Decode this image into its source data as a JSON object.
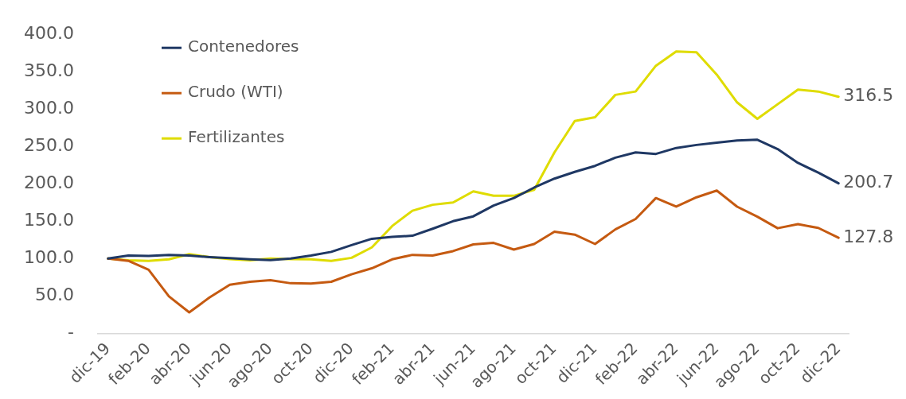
{
  "chart_data": {
    "type": "line",
    "categories": [
      "dic-19",
      null,
      "feb-20",
      null,
      "abr-20",
      null,
      "jun-20",
      null,
      "ago-20",
      null,
      "oct-20",
      null,
      "dic-20",
      null,
      "feb-21",
      null,
      "abr-21",
      null,
      "jun-21",
      null,
      "ago-21",
      null,
      "oct-21",
      null,
      "dic-21",
      null,
      "feb-22",
      null,
      "abr-22",
      null,
      "jun-22",
      null,
      "ago-22",
      null,
      "oct-22",
      null,
      "dic-22"
    ],
    "series": [
      {
        "name": "Contenedores",
        "color": "#1f3864",
        "values": [
          100,
          104,
          103.5,
          105,
          104,
          102,
          100.6,
          99,
          98,
          100,
          104,
          109,
          118,
          126.5,
          129,
          130.6,
          140,
          150,
          156.5,
          171,
          181,
          195,
          207,
          216,
          224,
          235,
          242,
          240,
          248,
          252,
          255,
          258,
          259,
          246.5,
          228,
          215,
          200.7
        ],
        "value_labels": [
          null,
          null,
          null,
          null,
          null,
          null,
          null,
          null,
          null,
          null,
          null,
          null,
          null,
          null,
          null,
          null,
          null,
          null,
          null,
          null,
          null,
          null,
          null,
          null,
          null,
          null,
          null,
          null,
          null,
          null,
          null,
          null,
          null,
          null,
          null,
          null,
          "200.7"
        ]
      },
      {
        "name": "Crudo (WTI)",
        "color": "#c55a11",
        "values": [
          100,
          97,
          85,
          49.5,
          28,
          48,
          65,
          69,
          71,
          67,
          66.5,
          69,
          79,
          87,
          99,
          105,
          104,
          110,
          119,
          121,
          112,
          119.5,
          136,
          132,
          119.5,
          139,
          153,
          181,
          169.5,
          182,
          191,
          169.5,
          156,
          140.6,
          146,
          141,
          127.8
        ],
        "value_labels": [
          null,
          null,
          null,
          null,
          null,
          null,
          null,
          null,
          null,
          null,
          null,
          null,
          null,
          null,
          null,
          null,
          null,
          null,
          null,
          null,
          null,
          null,
          null,
          null,
          null,
          null,
          null,
          null,
          null,
          null,
          null,
          null,
          null,
          null,
          null,
          null,
          "127.8"
        ]
      },
      {
        "name": "Fertilizantes",
        "color": "#dfdc00",
        "values": [
          100,
          97.6,
          97,
          99,
          106,
          102,
          99.4,
          97.6,
          100,
          99.4,
          99,
          97,
          101,
          115,
          143.5,
          164,
          172,
          175,
          190,
          184,
          184,
          192,
          242,
          284,
          289,
          319,
          323.5,
          358,
          377,
          376,
          346,
          309,
          287,
          306.5,
          326,
          323.5,
          316.5
        ],
        "value_labels": [
          null,
          null,
          null,
          null,
          null,
          null,
          null,
          null,
          null,
          null,
          null,
          null,
          null,
          null,
          null,
          null,
          null,
          null,
          null,
          null,
          null,
          null,
          null,
          null,
          null,
          null,
          null,
          null,
          null,
          null,
          null,
          null,
          null,
          null,
          null,
          null,
          "316.5"
        ]
      }
    ],
    "ylim": [
      0,
      400
    ],
    "yticks": [
      {
        "value": 0,
        "label": "-"
      },
      {
        "value": 50,
        "label": "50.0"
      },
      {
        "value": 100,
        "label": "100.0"
      },
      {
        "value": 150,
        "label": "150.0"
      },
      {
        "value": 200,
        "label": "200.0"
      },
      {
        "value": 250,
        "label": "250.0"
      },
      {
        "value": 300,
        "label": "300.0"
      },
      {
        "value": 350,
        "label": "350.0"
      },
      {
        "value": 400,
        "label": "400.0"
      }
    ],
    "grid": false,
    "legend": "top left",
    "marker": "none",
    "line_style": "solid"
  }
}
